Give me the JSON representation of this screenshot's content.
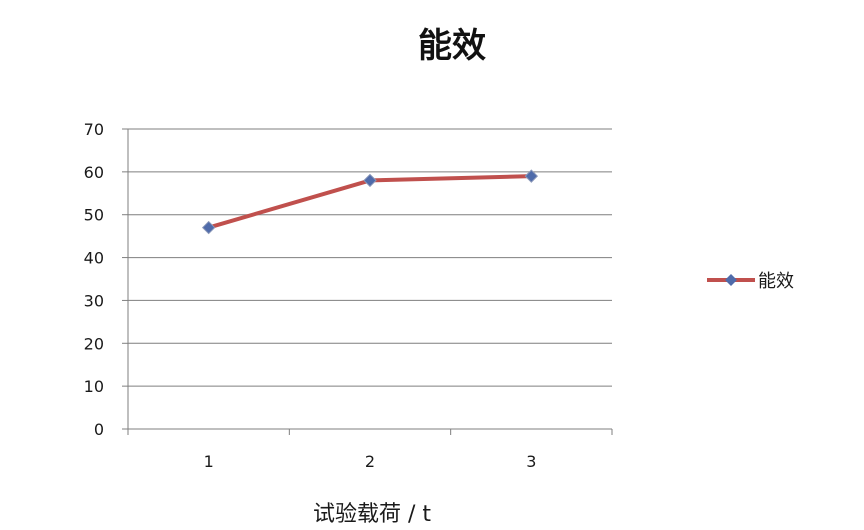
{
  "chart_data": {
    "type": "line",
    "title": "能效",
    "xlabel": "试验载荷 / t",
    "ylabel": "",
    "categories": [
      "1",
      "2",
      "3"
    ],
    "series": [
      {
        "name": "能效",
        "values": [
          47,
          58,
          59
        ],
        "color": "#C0504D",
        "marker_color": "#4F6BAA"
      }
    ],
    "ylim": [
      0,
      70
    ],
    "yticks": [
      "0",
      "10",
      "20",
      "30",
      "40",
      "50",
      "60",
      "70"
    ],
    "grid": true,
    "legend_position": "right"
  }
}
